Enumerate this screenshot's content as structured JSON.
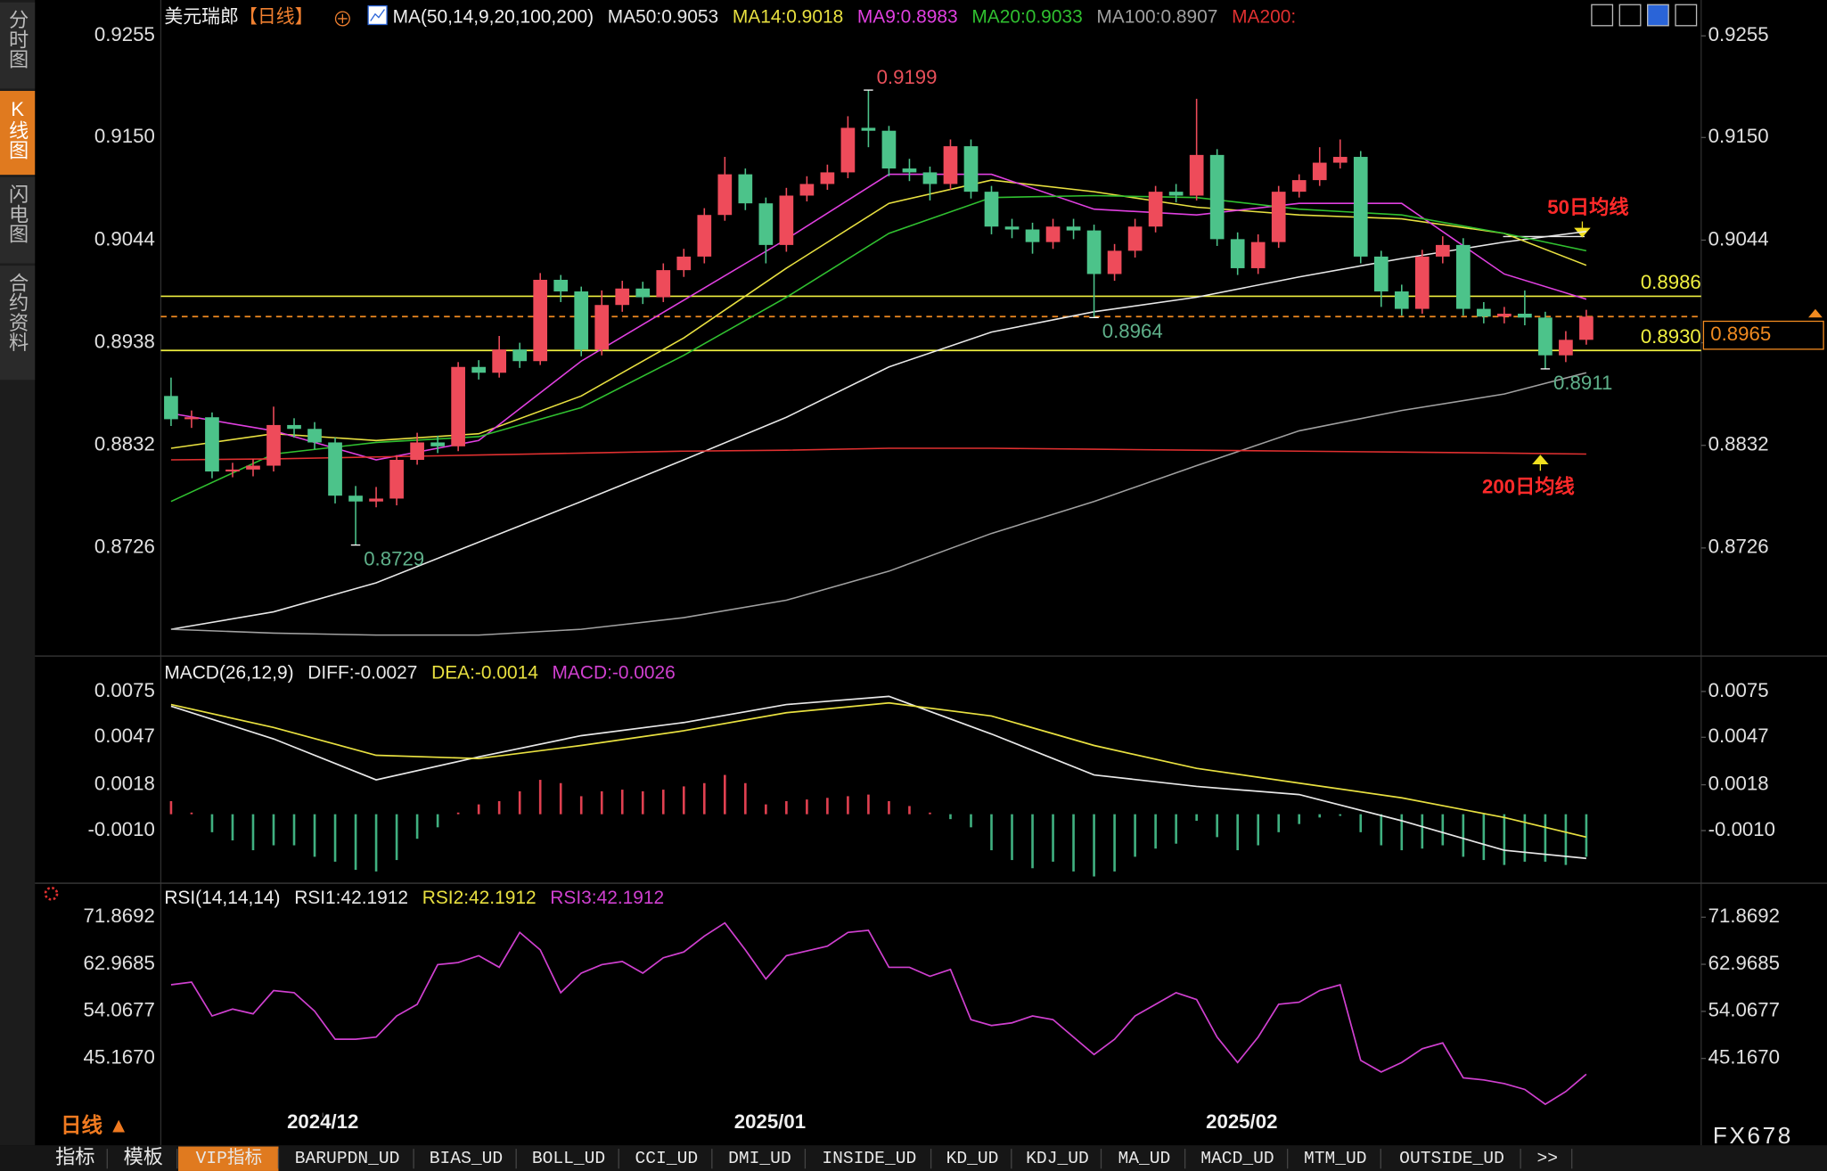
{
  "sidebar": {
    "items": [
      "分时图",
      "K线图",
      "闪电图",
      "合约资料"
    ],
    "selected": 1
  },
  "chart_data": [
    {
      "type": "candlestick",
      "title": "美元瑞郎",
      "period": "【日线】",
      "indicator": "MA(50,14,9,20,100,200)",
      "xlim": [
        -0.5,
        74.6
      ],
      "ylim": [
        0.8618,
        0.928
      ],
      "yticks": [
        {
          "value": 0.9255,
          "label": "0.9255"
        },
        {
          "value": 0.915,
          "label": "0.9150"
        },
        {
          "value": 0.9044,
          "label": "0.9044"
        },
        {
          "value": 0.8938,
          "label": "0.8938"
        },
        {
          "value": 0.8832,
          "label": "0.8832"
        },
        {
          "value": 0.8726,
          "label": "0.8726"
        }
      ],
      "up_color": "#ee4b5a",
      "down_color": "#4cc38a",
      "open": [
        0.8883,
        0.8859,
        0.8861,
        0.8805,
        0.8807,
        0.8811,
        0.8853,
        0.8849,
        0.8835,
        0.878,
        0.8774,
        0.8777,
        0.8817,
        0.8835,
        0.8831,
        0.8913,
        0.8907,
        0.8931,
        0.8919,
        0.9003,
        0.8991,
        0.8931,
        0.8977,
        0.8994,
        0.8985,
        0.9013,
        0.9027,
        0.907,
        0.9112,
        0.9082,
        0.9039,
        0.909,
        0.9102,
        0.9114,
        0.916,
        0.9157,
        0.9118,
        0.9114,
        0.9102,
        0.9141,
        0.9094,
        0.9058,
        0.9055,
        0.9042,
        0.9058,
        0.9054,
        0.9009,
        0.9033,
        0.9058,
        0.9094,
        0.909,
        0.9132,
        0.9045,
        0.9015,
        0.9042,
        0.9094,
        0.9106,
        0.9124,
        0.913,
        0.9027,
        0.8991,
        0.8973,
        0.9027,
        0.9039,
        0.8973,
        0.8965,
        0.8968,
        0.8964,
        0.8925,
        0.8941
      ],
      "high": [
        0.8902,
        0.8868,
        0.8866,
        0.8814,
        0.8818,
        0.8872,
        0.886,
        0.8856,
        0.884,
        0.879,
        0.8789,
        0.8822,
        0.8845,
        0.8842,
        0.8918,
        0.892,
        0.8945,
        0.8938,
        0.901,
        0.9008,
        0.8996,
        0.8992,
        0.9002,
        0.9001,
        0.902,
        0.9035,
        0.9077,
        0.913,
        0.9118,
        0.9088,
        0.9098,
        0.911,
        0.9122,
        0.9172,
        0.9199,
        0.9162,
        0.9128,
        0.912,
        0.9148,
        0.9148,
        0.91,
        0.9066,
        0.9062,
        0.9066,
        0.9066,
        0.906,
        0.904,
        0.9066,
        0.91,
        0.9102,
        0.919,
        0.9138,
        0.9052,
        0.905,
        0.91,
        0.9112,
        0.914,
        0.9148,
        0.9136,
        0.9033,
        0.8998,
        0.9034,
        0.9048,
        0.9046,
        0.898,
        0.8975,
        0.8992,
        0.897,
        0.895,
        0.8972
      ],
      "low": [
        0.8852,
        0.885,
        0.8798,
        0.8799,
        0.88,
        0.8805,
        0.884,
        0.8828,
        0.8772,
        0.8729,
        0.8768,
        0.877,
        0.8812,
        0.8824,
        0.8826,
        0.89,
        0.8902,
        0.8912,
        0.8915,
        0.898,
        0.8924,
        0.8925,
        0.897,
        0.8978,
        0.898,
        0.9006,
        0.902,
        0.9064,
        0.9075,
        0.902,
        0.9032,
        0.9084,
        0.9096,
        0.9108,
        0.914,
        0.911,
        0.9105,
        0.9085,
        0.9096,
        0.9087,
        0.905,
        0.9046,
        0.903,
        0.9035,
        0.9045,
        0.8964,
        0.9002,
        0.9026,
        0.9052,
        0.9083,
        0.9085,
        0.9038,
        0.9008,
        0.9009,
        0.9036,
        0.9088,
        0.91,
        0.9118,
        0.902,
        0.8975,
        0.8966,
        0.8968,
        0.902,
        0.8966,
        0.8958,
        0.8958,
        0.8956,
        0.8911,
        0.8918,
        0.8936
      ],
      "close": [
        0.8859,
        0.8861,
        0.8805,
        0.8807,
        0.8811,
        0.8853,
        0.8849,
        0.8835,
        0.878,
        0.8774,
        0.8777,
        0.8817,
        0.8835,
        0.8831,
        0.8913,
        0.8907,
        0.8931,
        0.8919,
        0.9003,
        0.8991,
        0.8931,
        0.8977,
        0.8994,
        0.8985,
        0.9013,
        0.9027,
        0.907,
        0.9112,
        0.9082,
        0.9039,
        0.909,
        0.9102,
        0.9114,
        0.916,
        0.9157,
        0.9118,
        0.9114,
        0.9102,
        0.9141,
        0.9094,
        0.9058,
        0.9055,
        0.9042,
        0.9058,
        0.9054,
        0.9009,
        0.9033,
        0.9058,
        0.9094,
        0.909,
        0.9132,
        0.9045,
        0.9015,
        0.9042,
        0.9094,
        0.9106,
        0.9124,
        0.913,
        0.9027,
        0.8991,
        0.8973,
        0.9027,
        0.9039,
        0.8973,
        0.8965,
        0.8968,
        0.8964,
        0.8925,
        0.8941,
        0.8965
      ],
      "series": [
        {
          "name": "MA50:0.9053",
          "color": "#e8e8e8",
          "x": [
            0,
            5,
            10,
            15,
            20,
            25,
            30,
            35,
            40,
            45,
            50,
            55,
            60,
            65,
            69
          ],
          "values": [
            0.8642,
            0.866,
            0.869,
            0.8732,
            0.8774,
            0.8817,
            0.8861,
            0.8913,
            0.8949,
            0.897,
            0.8985,
            0.9006,
            0.9025,
            0.9042,
            0.9053
          ]
        },
        {
          "name": "MA14:0.9018",
          "color": "#e8e040",
          "x": [
            0,
            5,
            10,
            15,
            20,
            25,
            30,
            35,
            40,
            45,
            50,
            55,
            60,
            65,
            69
          ],
          "values": [
            0.8829,
            0.8844,
            0.8837,
            0.8844,
            0.8883,
            0.8943,
            0.9015,
            0.9082,
            0.9106,
            0.9094,
            0.9078,
            0.907,
            0.9066,
            0.9051,
            0.9018
          ]
        },
        {
          "name": "MA9:0.8983",
          "color": "#e040e0",
          "x": [
            0,
            5,
            10,
            15,
            20,
            25,
            30,
            35,
            40,
            45,
            50,
            55,
            60,
            65,
            69
          ],
          "values": [
            0.8865,
            0.8847,
            0.8817,
            0.8837,
            0.8919,
            0.8982,
            0.9045,
            0.9112,
            0.9112,
            0.9076,
            0.907,
            0.9082,
            0.9082,
            0.9009,
            0.8983
          ]
        },
        {
          "name": "MA20:0.9033",
          "color": "#30c030",
          "x": [
            0,
            5,
            10,
            15,
            20,
            25,
            30,
            35,
            40,
            45,
            50,
            55,
            60,
            65,
            69
          ],
          "values": [
            0.8774,
            0.8823,
            0.8835,
            0.8841,
            0.8871,
            0.8925,
            0.8985,
            0.9051,
            0.9088,
            0.909,
            0.9088,
            0.9076,
            0.907,
            0.9051,
            0.9033
          ]
        },
        {
          "name": "MA100:0.8907",
          "color": "#a0a0a0",
          "x": [
            0,
            5,
            10,
            15,
            20,
            25,
            30,
            35,
            40,
            45,
            50,
            55,
            60,
            65,
            69
          ],
          "values": [
            0.8642,
            0.8638,
            0.8636,
            0.8636,
            0.8642,
            0.8654,
            0.8672,
            0.8702,
            0.8741,
            0.8774,
            0.8811,
            0.8847,
            0.8868,
            0.8885,
            0.8907
          ]
        },
        {
          "name": "MA200:",
          "color": "#e03030",
          "x": [
            0,
            5,
            10,
            15,
            20,
            25,
            30,
            35,
            40,
            45,
            50,
            55,
            60,
            65,
            69
          ],
          "values": [
            0.8817,
            0.8818,
            0.882,
            0.8822,
            0.8824,
            0.8826,
            0.8827,
            0.8829,
            0.8829,
            0.8828,
            0.8827,
            0.8826,
            0.8825,
            0.8824,
            0.8823
          ]
        }
      ],
      "levels": [
        {
          "value": 0.8986,
          "label": "0.8986",
          "color": "#f0f040",
          "style": "solid"
        },
        {
          "value": 0.893,
          "label": "0.8930",
          "color": "#f0f040",
          "style": "solid"
        },
        {
          "value": 0.8965,
          "label": "0.8965",
          "color": "#f08a20",
          "style": "dashed"
        }
      ],
      "annotations": [
        {
          "x": 34,
          "value": 0.9199,
          "label": "0.9199",
          "color": "#e8505a"
        },
        {
          "x": 9,
          "value": 0.8729,
          "label": "0.8729",
          "color": "#5fb08a"
        },
        {
          "x": 45,
          "value": 0.8964,
          "label": "0.8964",
          "color": "#5fb08a"
        },
        {
          "x": 67,
          "value": 0.8911,
          "label": "0.8911",
          "color": "#5fb08a"
        }
      ],
      "notes": [
        {
          "text": "50日均线",
          "color": "#ff2a2a"
        },
        {
          "text": "200日均线",
          "color": "#ff2a2a"
        }
      ]
    },
    {
      "type": "macd",
      "indicator": "MACD(26,12,9)",
      "xlim": [
        -0.5,
        74.6
      ],
      "ylim": [
        -0.004,
        0.0081
      ],
      "yticks": [
        {
          "value": 0.0075,
          "label": "0.0075"
        },
        {
          "value": 0.0047,
          "label": "0.0047"
        },
        {
          "value": 0.0018,
          "label": "0.0018"
        },
        {
          "value": -0.001,
          "label": "-0.0010"
        }
      ],
      "series": [
        {
          "name": "DIFF:-0.0027",
          "color": "#e8e8e8",
          "x": [
            0,
            5,
            10,
            15,
            20,
            25,
            30,
            35,
            40,
            45,
            50,
            55,
            60,
            65,
            69
          ],
          "values": [
            0.0066,
            0.0046,
            0.0021,
            0.0035,
            0.0048,
            0.0056,
            0.0067,
            0.0072,
            0.0049,
            0.0024,
            0.0017,
            0.0012,
            -0.0004,
            -0.0022,
            -0.0027
          ]
        },
        {
          "name": "DEA:-0.0014",
          "color": "#e8e040",
          "x": [
            0,
            5,
            10,
            15,
            20,
            25,
            30,
            35,
            40,
            45,
            50,
            55,
            60,
            65,
            69
          ],
          "values": [
            0.0067,
            0.0053,
            0.0036,
            0.0034,
            0.0042,
            0.0051,
            0.0062,
            0.0068,
            0.006,
            0.0042,
            0.0028,
            0.0019,
            0.001,
            -0.0002,
            -0.0014
          ]
        }
      ],
      "histogram": {
        "name": "MACD:-0.0026",
        "color": "#d040d0",
        "up_color": "#e04050",
        "down_color": "#40b080",
        "values": [
          0.0008,
          0.0001,
          -0.0011,
          -0.0016,
          -0.0022,
          -0.0019,
          -0.0019,
          -0.0026,
          -0.0029,
          -0.0034,
          -0.0035,
          -0.0028,
          -0.0015,
          -0.0008,
          0.0001,
          0.0006,
          0.0008,
          0.0014,
          0.0021,
          0.0019,
          0.0011,
          0.0014,
          0.0015,
          0.0014,
          0.0015,
          0.0017,
          0.0019,
          0.0024,
          0.0019,
          0.0006,
          0.0008,
          0.0009,
          0.001,
          0.0011,
          0.0012,
          0.0008,
          0.0005,
          0.0001,
          -0.0003,
          -0.0008,
          -0.0022,
          -0.0028,
          -0.0033,
          -0.0029,
          -0.0035,
          -0.0038,
          -0.0035,
          -0.0026,
          -0.0021,
          -0.0018,
          -0.0004,
          -0.0014,
          -0.0022,
          -0.0019,
          -0.0011,
          -0.0006,
          -0.0002,
          -0.0001,
          -0.0011,
          -0.0019,
          -0.0022,
          -0.0021,
          -0.0019,
          -0.0026,
          -0.0028,
          -0.0031,
          -0.0029,
          -0.0029,
          -0.0031,
          -0.0026
        ]
      }
    },
    {
      "type": "line",
      "indicator": "RSI(14,14,14)",
      "xlim": [
        -0.5,
        74.6
      ],
      "ylim": [
        34.9,
        73.9
      ],
      "yticks": [
        {
          "value": 71.8692,
          "label": "71.8692"
        },
        {
          "value": 62.9685,
          "label": "62.9685"
        },
        {
          "value": 54.0677,
          "label": "54.0677"
        },
        {
          "value": 45.167,
          "label": "45.1670"
        }
      ],
      "xticks": [
        {
          "value": 7.4,
          "label": "2024/12"
        },
        {
          "value": 29.2,
          "label": "2025/01"
        },
        {
          "value": 52.2,
          "label": "2025/02"
        }
      ],
      "legend": [
        {
          "label": "RSI1:42.1912",
          "color": "#e8e8e8"
        },
        {
          "label": "RSI2:42.1912",
          "color": "#e8e040"
        },
        {
          "label": "RSI3:42.1912",
          "color": "#d040d0"
        }
      ],
      "color": "#d040d0",
      "values": [
        59.1,
        59.6,
        53.2,
        54.5,
        53.6,
        58.0,
        57.6,
        54.1,
        48.8,
        48.8,
        49.2,
        53.2,
        55.4,
        62.9,
        63.3,
        64.6,
        62.4,
        69.0,
        65.7,
        57.6,
        61.3,
        62.9,
        63.5,
        61.3,
        64.2,
        65.3,
        68.3,
        70.8,
        65.7,
        60.2,
        64.6,
        65.5,
        66.4,
        69.0,
        69.4,
        62.4,
        62.4,
        60.7,
        62.0,
        52.5,
        51.4,
        51.9,
        53.2,
        52.5,
        49.2,
        45.9,
        48.8,
        53.2,
        55.4,
        57.6,
        56.3,
        49.2,
        44.4,
        49.2,
        55.4,
        55.8,
        58.0,
        59.1,
        44.8,
        42.6,
        44.4,
        47.0,
        48.1,
        41.5,
        41.1,
        40.4,
        39.3,
        36.5,
        38.9,
        42.1912
      ]
    }
  ],
  "footer": {
    "period": "日线 ▲",
    "tabs": [
      "指标",
      "模板",
      "VIP指标",
      "BARUPDN_UD",
      "BIAS_UD",
      "BOLL_UD",
      "CCI_UD",
      "DMI_UD",
      "INSIDE_UD",
      "KD_UD",
      "KDJ_UD",
      "MA_UD",
      "MACD_UD",
      "MTM_UD",
      "OUTSIDE_UD",
      ">>"
    ],
    "selected": 2,
    "brand": "FX678"
  }
}
